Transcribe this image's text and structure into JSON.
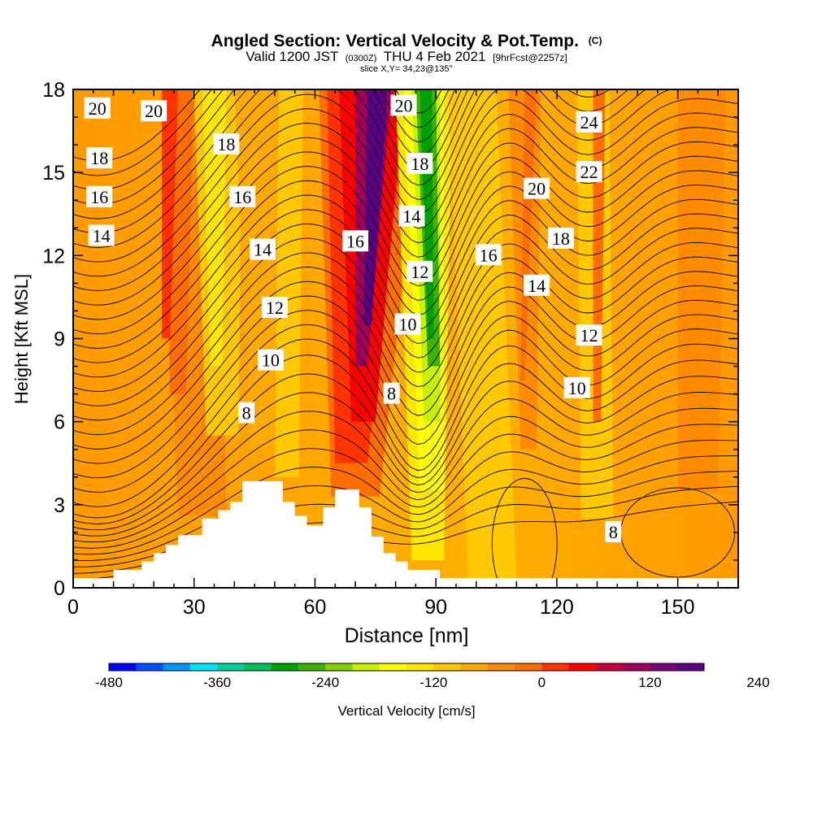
{
  "chart_data": {
    "type": "heatmap",
    "title": "Angled Section: Vertical Velocity & Pot.Temp.",
    "title_mark": "(C)",
    "subtitle": {
      "pre": "Valid 1200 JST",
      "utc": "(0300Z)",
      "date": "THU 4 Feb 2021",
      "fcst": "[9hrFcst@2257z]"
    },
    "slice_label": "slice X,Y= 34,23@135°",
    "xlabel": "Distance [nm]",
    "ylabel": "Height [Kft MSL]",
    "xlim": [
      0,
      165
    ],
    "ylim": [
      0,
      18
    ],
    "x_ticks": [
      "0",
      "30",
      "60",
      "90",
      "120",
      "150"
    ],
    "y_ticks": [
      "0",
      "3",
      "6",
      "9",
      "12",
      "15",
      "18"
    ],
    "colorbar": {
      "label": "Vertical Velocity [cm/s]",
      "tick_labels": [
        "-480",
        "-360",
        "-240",
        "-120",
        "0",
        "120",
        "240"
      ],
      "colors": [
        "#0000ff",
        "#0050ff",
        "#0096ff",
        "#00e6ff",
        "#00d2a0",
        "#00be5a",
        "#00a000",
        "#3cb400",
        "#82d200",
        "#c8f000",
        "#ffff00",
        "#ffe600",
        "#ffc800",
        "#ffaa00",
        "#ff8c00",
        "#ff6e00",
        "#ff3200",
        "#ff0000",
        "#c8003c",
        "#a0005a",
        "#780078",
        "#5a0082"
      ]
    },
    "theta_labels": [
      {
        "text": "20",
        "x": 6,
        "y": 17.3
      },
      {
        "text": "20",
        "x": 20,
        "y": 17.2
      },
      {
        "text": "18",
        "x": 6.5,
        "y": 15.5
      },
      {
        "text": "16",
        "x": 6.5,
        "y": 14.1
      },
      {
        "text": "14",
        "x": 7,
        "y": 12.7
      },
      {
        "text": "18",
        "x": 38,
        "y": 16.0
      },
      {
        "text": "16",
        "x": 42,
        "y": 14.1
      },
      {
        "text": "14",
        "x": 47,
        "y": 12.2
      },
      {
        "text": "12",
        "x": 50,
        "y": 10.1
      },
      {
        "text": "10",
        "x": 49,
        "y": 8.2
      },
      {
        "text": "8",
        "x": 43,
        "y": 6.3
      },
      {
        "text": "16",
        "x": 70,
        "y": 12.5
      },
      {
        "text": "20",
        "x": 82,
        "y": 17.4
      },
      {
        "text": "18",
        "x": 86,
        "y": 15.3
      },
      {
        "text": "14",
        "x": 84,
        "y": 13.4
      },
      {
        "text": "12",
        "x": 86,
        "y": 11.4
      },
      {
        "text": "10",
        "x": 83,
        "y": 9.5
      },
      {
        "text": "8",
        "x": 79,
        "y": 7.0
      },
      {
        "text": "24",
        "x": 128,
        "y": 16.8
      },
      {
        "text": "22",
        "x": 128,
        "y": 15.0
      },
      {
        "text": "20",
        "x": 115,
        "y": 14.4
      },
      {
        "text": "18",
        "x": 121,
        "y": 12.6
      },
      {
        "text": "16",
        "x": 103,
        "y": 12.0
      },
      {
        "text": "14",
        "x": 115,
        "y": 10.9
      },
      {
        "text": "12",
        "x": 128,
        "y": 9.1
      },
      {
        "text": "10",
        "x": 125,
        "y": 7.2
      },
      {
        "text": "8",
        "x": 134,
        "y": 2.0
      }
    ],
    "terrain": [
      [
        0,
        0.35
      ],
      [
        10,
        0.35
      ],
      [
        10,
        0.65
      ],
      [
        17,
        0.65
      ],
      [
        17,
        0.95
      ],
      [
        20,
        0.95
      ],
      [
        20,
        1.25
      ],
      [
        23,
        1.25
      ],
      [
        23,
        1.55
      ],
      [
        26,
        1.55
      ],
      [
        26,
        1.9
      ],
      [
        32,
        1.9
      ],
      [
        32,
        2.5
      ],
      [
        36,
        2.5
      ],
      [
        36,
        2.8
      ],
      [
        39,
        2.8
      ],
      [
        39,
        3.1
      ],
      [
        42,
        3.1
      ],
      [
        42,
        3.85
      ],
      [
        52,
        3.85
      ],
      [
        52,
        3.1
      ],
      [
        55,
        3.1
      ],
      [
        55,
        2.6
      ],
      [
        58,
        2.6
      ],
      [
        58,
        2.25
      ],
      [
        62,
        2.25
      ],
      [
        62,
        2.9
      ],
      [
        65,
        2.9
      ],
      [
        65,
        3.55
      ],
      [
        71,
        3.55
      ],
      [
        71,
        2.9
      ],
      [
        74,
        2.9
      ],
      [
        74,
        1.85
      ],
      [
        77,
        1.85
      ],
      [
        77,
        1.25
      ],
      [
        80,
        1.25
      ],
      [
        80,
        0.95
      ],
      [
        83,
        0.95
      ],
      [
        83,
        0.65
      ],
      [
        91,
        0.65
      ],
      [
        91,
        0.35
      ],
      [
        165,
        0.35
      ]
    ]
  }
}
